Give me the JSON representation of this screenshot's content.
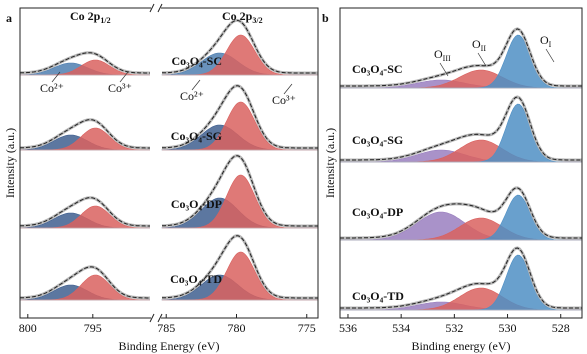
{
  "panels": [
    {
      "letter": "a",
      "type": "xps",
      "xlabel": "Binding Energy (eV)",
      "ylabel": "Intensity (a.u.)",
      "segments": [
        {
          "xlim": [
            800.6,
            790.6
          ],
          "xticks": [
            800,
            795
          ],
          "header": {
            "main": "Co 2p",
            "sub": "1/2"
          }
        },
        {
          "xlim": [
            785.3,
            774.2
          ],
          "xticks": [
            785,
            780,
            775
          ],
          "header": {
            "main": "Co 2p",
            "sub": "3/2"
          }
        }
      ],
      "annotations": [
        {
          "text": "Co²⁺"
        },
        {
          "text": "Co³⁺"
        },
        {
          "text": "Co²⁺"
        },
        {
          "text": "Co³⁺"
        }
      ],
      "samples": [
        {
          "name": "Co₃O₄-SC",
          "components": [
            {
              "center": 796.7,
              "height": 12,
              "width": 1.3,
              "color": "#4f7fb0"
            },
            {
              "center": 794.8,
              "height": 15,
              "width": 1.1,
              "color": "#d9615f"
            },
            {
              "center": 781.2,
              "height": 22,
              "width": 1.3,
              "color": "#4f7fb0"
            },
            {
              "center": 779.7,
              "height": 40,
              "width": 1.0,
              "color": "#d9615f"
            }
          ]
        },
        {
          "name": "Co₃O₄-SG",
          "components": [
            {
              "center": 796.7,
              "height": 15,
              "width": 1.3,
              "color": "#3f5f8f"
            },
            {
              "center": 794.8,
              "height": 22,
              "width": 1.1,
              "color": "#d9615f"
            },
            {
              "center": 781.2,
              "height": 25,
              "width": 1.3,
              "color": "#3f5f8f"
            },
            {
              "center": 779.7,
              "height": 48,
              "width": 1.0,
              "color": "#d9615f"
            }
          ]
        },
        {
          "name": "Co₃O₄-DP",
          "components": [
            {
              "center": 796.7,
              "height": 15,
              "width": 1.3,
              "color": "#3f5f8f"
            },
            {
              "center": 794.8,
              "height": 22,
              "width": 1.1,
              "color": "#d9615f"
            },
            {
              "center": 781.2,
              "height": 30,
              "width": 1.3,
              "color": "#3f5f8f"
            },
            {
              "center": 779.7,
              "height": 53,
              "width": 1.0,
              "color": "#d9615f"
            }
          ]
        },
        {
          "name": "Co₃O₄-TD",
          "components": [
            {
              "center": 796.7,
              "height": 15,
              "width": 1.3,
              "color": "#3f5f8f"
            },
            {
              "center": 794.8,
              "height": 25,
              "width": 1.1,
              "color": "#d9615f"
            },
            {
              "center": 781.2,
              "height": 25,
              "width": 1.3,
              "color": "#3f5f8f"
            },
            {
              "center": 779.7,
              "height": 48,
              "width": 1.0,
              "color": "#d9615f"
            }
          ]
        }
      ]
    },
    {
      "letter": "b",
      "type": "xps",
      "xlabel": "Binding energy (eV)",
      "ylabel": "Intensity (a.u.)",
      "segments": [
        {
          "xlim": [
            536.3,
            527.2
          ],
          "xticks": [
            536,
            534,
            532,
            530,
            528
          ]
        }
      ],
      "annotations": [
        {
          "text": {
            "base": "O",
            "sub": "III"
          }
        },
        {
          "text": {
            "base": "O",
            "sub": "II"
          }
        },
        {
          "text": {
            "base": "O",
            "sub": "I"
          }
        }
      ],
      "samples": [
        {
          "name": "Co₃O₄-SC",
          "components": [
            {
              "center": 532.5,
              "height": 8,
              "width": 0.9,
              "color": "#9a7fbf"
            },
            {
              "center": 531.0,
              "height": 18,
              "width": 0.8,
              "color": "#d9615f"
            },
            {
              "center": 529.6,
              "height": 53,
              "width": 0.45,
              "color": "#4f8fc4"
            }
          ]
        },
        {
          "name": "Co₃O₄-SG",
          "components": [
            {
              "center": 532.5,
              "height": 12,
              "width": 0.9,
              "color": "#9a7fbf"
            },
            {
              "center": 531.0,
              "height": 22,
              "width": 0.8,
              "color": "#d9615f"
            },
            {
              "center": 529.6,
              "height": 58,
              "width": 0.45,
              "color": "#4f8fc4"
            }
          ]
        },
        {
          "name": "Co₃O₄-DP",
          "components": [
            {
              "center": 532.5,
              "height": 28,
              "width": 0.9,
              "color": "#9a7fbf"
            },
            {
              "center": 531.0,
              "height": 22,
              "width": 0.8,
              "color": "#d9615f"
            },
            {
              "center": 529.6,
              "height": 45,
              "width": 0.45,
              "color": "#4f8fc4"
            }
          ]
        },
        {
          "name": "Co₃O₄-TD",
          "components": [
            {
              "center": 532.5,
              "height": 8,
              "width": 0.9,
              "color": "#9a7fbf"
            },
            {
              "center": 531.0,
              "height": 22,
              "width": 0.8,
              "color": "#d9615f"
            },
            {
              "center": 529.6,
              "height": 55,
              "width": 0.45,
              "color": "#4f8fc4"
            }
          ]
        }
      ]
    }
  ]
}
